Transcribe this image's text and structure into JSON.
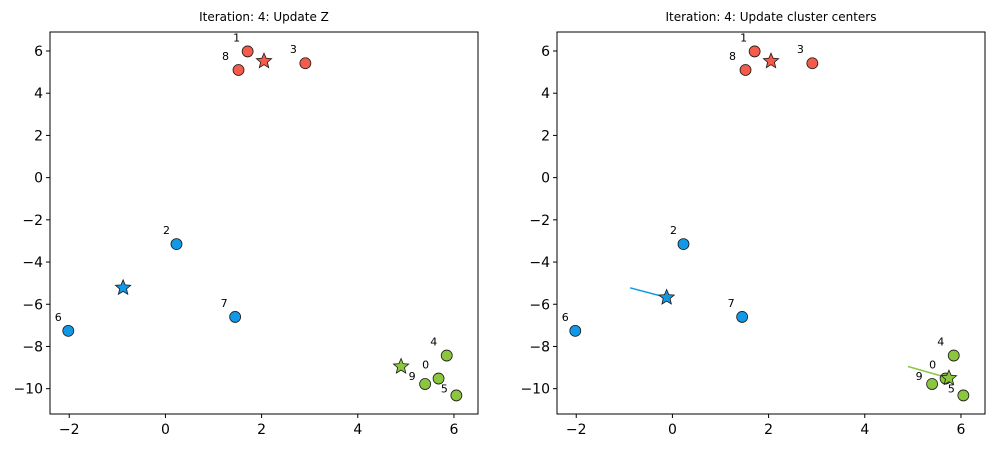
{
  "colors": {
    "cluster_red": "#f45b4b",
    "cluster_blue": "#1199e8",
    "cluster_green": "#8cc63f",
    "edge": "#1a1a1a",
    "frame": "#000000"
  },
  "chart_data": [
    {
      "type": "scatter",
      "title": "Iteration: 4: Update Z",
      "xlim": [
        -2.4,
        6.5
      ],
      "ylim": [
        -11.2,
        6.9
      ],
      "xticks": [
        -2,
        0,
        2,
        4,
        6
      ],
      "yticks": [
        -10,
        -8,
        -6,
        -4,
        -2,
        0,
        2,
        4,
        6
      ],
      "grid": false,
      "points": [
        {
          "label": "0",
          "x": 5.68,
          "y": -9.52,
          "color": "cluster_green"
        },
        {
          "label": "1",
          "x": 1.71,
          "y": 5.98,
          "color": "cluster_red"
        },
        {
          "label": "2",
          "x": 0.23,
          "y": -3.15,
          "color": "cluster_blue"
        },
        {
          "label": "3",
          "x": 2.91,
          "y": 5.42,
          "color": "cluster_red"
        },
        {
          "label": "4",
          "x": 5.85,
          "y": -8.43,
          "color": "cluster_green"
        },
        {
          "label": "5",
          "x": 6.05,
          "y": -10.32,
          "color": "cluster_green"
        },
        {
          "label": "6",
          "x": -2.02,
          "y": -7.26,
          "color": "cluster_blue"
        },
        {
          "label": "7",
          "x": 1.45,
          "y": -6.6,
          "color": "cluster_blue"
        },
        {
          "label": "8",
          "x": 1.52,
          "y": 5.1,
          "color": "cluster_red"
        },
        {
          "label": "9",
          "x": 5.4,
          "y": -9.78,
          "color": "cluster_green"
        }
      ],
      "centers": [
        {
          "x": 2.05,
          "y": 5.52,
          "color": "cluster_red"
        },
        {
          "x": -0.88,
          "y": -5.22,
          "color": "cluster_blue"
        },
        {
          "x": 4.9,
          "y": -8.95,
          "color": "cluster_green"
        }
      ],
      "moves": []
    },
    {
      "type": "scatter",
      "title": "Iteration: 4: Update cluster centers",
      "xlim": [
        -2.4,
        6.5
      ],
      "ylim": [
        -11.2,
        6.9
      ],
      "xticks": [
        -2,
        0,
        2,
        4,
        6
      ],
      "yticks": [
        -10,
        -8,
        -6,
        -4,
        -2,
        0,
        2,
        4,
        6
      ],
      "grid": false,
      "points": [
        {
          "label": "0",
          "x": 5.68,
          "y": -9.52,
          "color": "cluster_green"
        },
        {
          "label": "1",
          "x": 1.71,
          "y": 5.98,
          "color": "cluster_red"
        },
        {
          "label": "2",
          "x": 0.23,
          "y": -3.15,
          "color": "cluster_blue"
        },
        {
          "label": "3",
          "x": 2.91,
          "y": 5.42,
          "color": "cluster_red"
        },
        {
          "label": "4",
          "x": 5.85,
          "y": -8.43,
          "color": "cluster_green"
        },
        {
          "label": "5",
          "x": 6.05,
          "y": -10.32,
          "color": "cluster_green"
        },
        {
          "label": "6",
          "x": -2.02,
          "y": -7.26,
          "color": "cluster_blue"
        },
        {
          "label": "7",
          "x": 1.45,
          "y": -6.6,
          "color": "cluster_blue"
        },
        {
          "label": "8",
          "x": 1.52,
          "y": 5.1,
          "color": "cluster_red"
        },
        {
          "label": "9",
          "x": 5.4,
          "y": -9.78,
          "color": "cluster_green"
        }
      ],
      "centers": [
        {
          "x": 2.05,
          "y": 5.52,
          "color": "cluster_red"
        },
        {
          "x": -0.12,
          "y": -5.68,
          "color": "cluster_blue"
        },
        {
          "x": 5.75,
          "y": -9.5,
          "color": "cluster_green"
        }
      ],
      "moves": [
        {
          "x0": -0.88,
          "y0": -5.22,
          "x1": -0.12,
          "y1": -5.68,
          "color": "cluster_blue"
        },
        {
          "x0": 4.9,
          "y0": -8.95,
          "x1": 5.75,
          "y1": -9.5,
          "color": "cluster_green"
        }
      ]
    }
  ]
}
